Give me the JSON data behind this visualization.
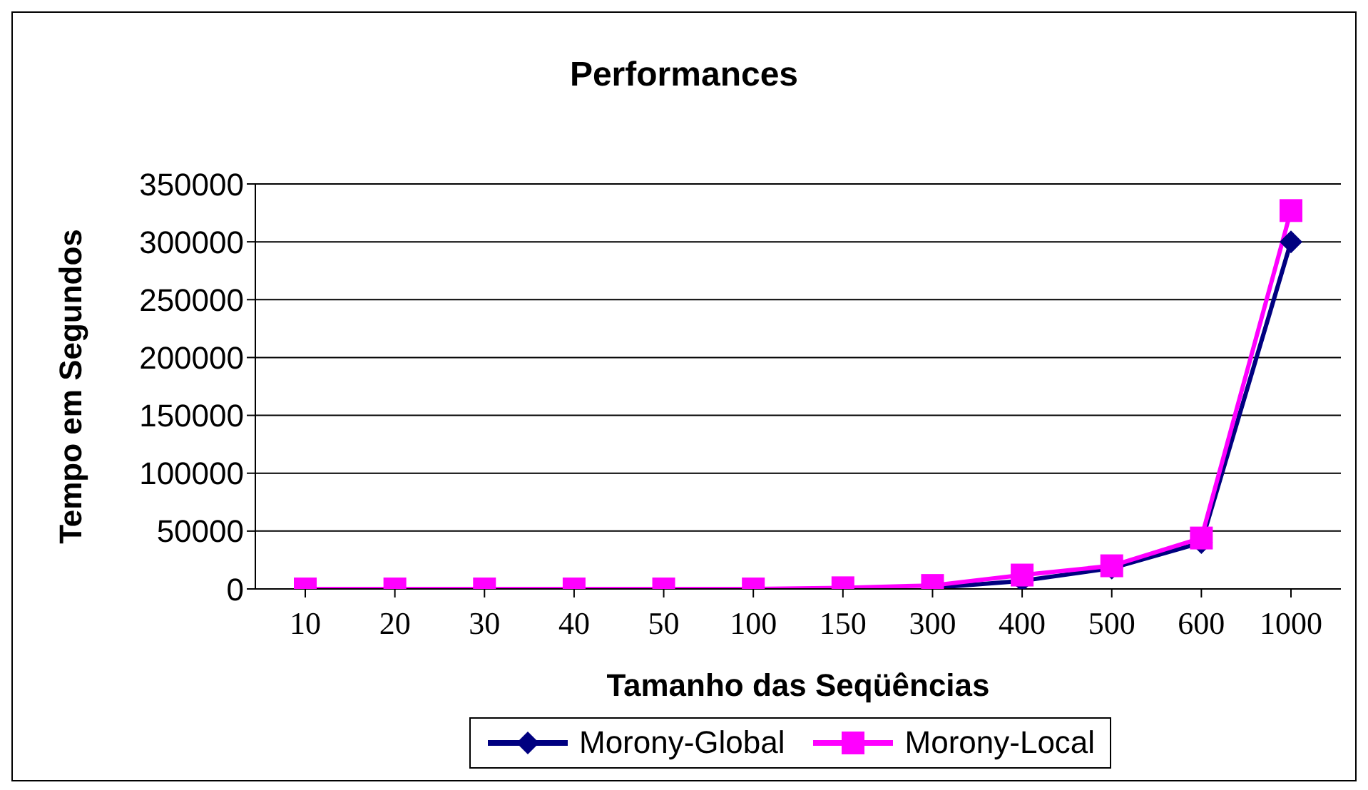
{
  "chart_data": {
    "type": "line",
    "title": "Performances",
    "xlabel": "Tamanho das Seqüências",
    "ylabel": "Tempo em Segundos",
    "categories": [
      "10",
      "20",
      "30",
      "40",
      "50",
      "100",
      "150",
      "300",
      "400",
      "500",
      "600",
      "1000"
    ],
    "series": [
      {
        "name": "Morony-Global",
        "color": "#000080",
        "marker": "diamond",
        "values": [
          null,
          null,
          null,
          null,
          null,
          null,
          null,
          1000,
          7000,
          18000,
          40000,
          300000
        ]
      },
      {
        "name": "Morony-Local",
        "color": "#ff00ff",
        "marker": "square",
        "values": [
          0,
          0,
          0,
          0,
          0,
          0,
          1000,
          3000,
          12000,
          20000,
          44000,
          327000
        ]
      }
    ],
    "ylim": [
      0,
      350000
    ],
    "yticks": [
      0,
      50000,
      100000,
      150000,
      200000,
      250000,
      300000,
      350000
    ],
    "grid": "y",
    "legend": "bottom"
  }
}
